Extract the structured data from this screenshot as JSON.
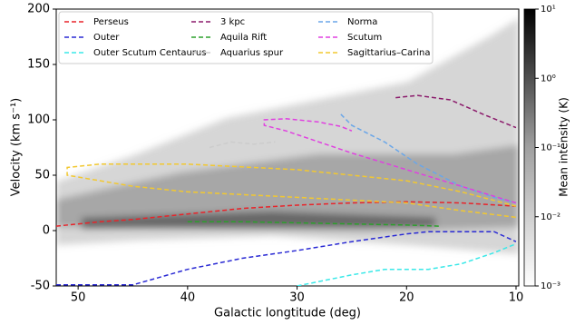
{
  "chart_data": {
    "type": "line",
    "xlabel": "Galactic longtitude (deg)",
    "ylabel": "Velocity (km s⁻¹)",
    "xlim": [
      52,
      9.75
    ],
    "ylim": [
      -50,
      200
    ],
    "xticks": [
      50,
      40,
      30,
      20,
      10
    ],
    "yticks": [
      -50,
      0,
      50,
      100,
      150,
      200
    ],
    "legend": "upper left",
    "legend_columns": 3,
    "series": [
      {
        "name": "Perseus",
        "color": "#e8242a",
        "x": [
          52,
          48,
          45,
          40,
          35,
          30,
          25,
          20,
          15,
          10
        ],
        "values": [
          4,
          8,
          10,
          15,
          20,
          23,
          25,
          26,
          25,
          22
        ]
      },
      {
        "name": "Outer",
        "color": "#2a2ad4",
        "x": [
          52,
          45,
          40,
          35,
          30,
          25,
          20,
          18,
          12,
          10
        ],
        "values": [
          -49,
          -49,
          -35,
          -25,
          -18,
          -10,
          -3,
          -1,
          -1,
          -10
        ]
      },
      {
        "name": "Outer Scutum Centaurus",
        "color": "#3ae8e8",
        "x": [
          30,
          25,
          22,
          18,
          15,
          12,
          10
        ],
        "values": [
          -50,
          -40,
          -35,
          -35,
          -30,
          -20,
          -12
        ]
      },
      {
        "name": "3 kpc",
        "color": "#8b1a6b",
        "x": [
          21,
          19,
          16,
          13,
          10
        ],
        "values": [
          120,
          122,
          118,
          105,
          93
        ]
      },
      {
        "name": "Aquila Rift",
        "color": "#2ca02c",
        "x": [
          40,
          35,
          30,
          25,
          20,
          17
        ],
        "values": [
          8,
          8,
          7,
          6,
          5,
          4
        ]
      },
      {
        "name": "Aquarius spur",
        "color": "#cccccc",
        "x": [
          38,
          36,
          34,
          32
        ],
        "values": [
          75,
          80,
          78,
          80
        ]
      },
      {
        "name": "Norma",
        "color": "#6aa6e8",
        "x": [
          26,
          25,
          22,
          19,
          15,
          12,
          10
        ],
        "values": [
          105,
          95,
          80,
          60,
          40,
          30,
          25
        ]
      },
      {
        "name": "Scutum",
        "color": "#e040e0",
        "x": [
          10,
          15,
          20,
          25,
          28,
          31,
          33,
          33,
          31,
          28,
          26,
          25
        ],
        "values": [
          25,
          40,
          55,
          70,
          80,
          90,
          95,
          100,
          101,
          98,
          94,
          90
        ]
      },
      {
        "name": "Sagittarius–Carina",
        "color": "#f2c830",
        "x": [
          10,
          15,
          20,
          30,
          40,
          48,
          51,
          51,
          45,
          40,
          30,
          20,
          15,
          10
        ],
        "values": [
          22,
          35,
          45,
          55,
          60,
          60,
          57,
          50,
          40,
          35,
          30,
          25,
          18,
          12
        ]
      }
    ],
    "colorbar": {
      "label": "Mean intensity (K)",
      "log": true,
      "lim": [
        0.001,
        10
      ],
      "ticks": [
        {
          "value": 10,
          "label": "10¹"
        },
        {
          "value": 1,
          "label": "10⁰"
        },
        {
          "value": 0.1,
          "label": "10⁻¹"
        },
        {
          "value": 0.01,
          "label": "10⁻²"
        },
        {
          "value": 0.001,
          "label": "10⁻³"
        }
      ]
    }
  }
}
